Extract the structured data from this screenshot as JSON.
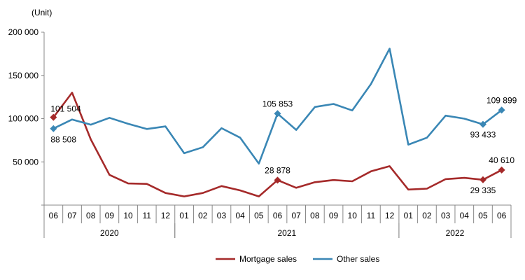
{
  "chart_data": {
    "type": "line",
    "unit_label": "(Unit)",
    "categories": [
      "06",
      "07",
      "08",
      "09",
      "10",
      "11",
      "12",
      "01",
      "02",
      "03",
      "04",
      "05",
      "06",
      "07",
      "08",
      "09",
      "10",
      "11",
      "12",
      "01",
      "02",
      "03",
      "04",
      "05",
      "06"
    ],
    "year_groups": [
      {
        "label": "2020",
        "start": 0,
        "end": 6
      },
      {
        "label": "2021",
        "start": 7,
        "end": 18
      },
      {
        "label": "2022",
        "start": 19,
        "end": 24
      }
    ],
    "y_ticks": [
      0,
      50000,
      100000,
      150000,
      200000
    ],
    "y_tick_labels": [
      "",
      "50 000",
      "100 000",
      "150 000",
      "200 000"
    ],
    "ylim": [
      0,
      200000
    ],
    "series": [
      {
        "name": "Mortgage sales",
        "color": "#a52a2a",
        "values": [
          101504,
          130000,
          76000,
          35000,
          25000,
          24500,
          14000,
          10000,
          14000,
          22000,
          17000,
          10000,
          28878,
          20000,
          26500,
          29000,
          27500,
          39000,
          45000,
          18000,
          19000,
          30000,
          31500,
          29335,
          40610
        ]
      },
      {
        "name": "Other sales",
        "color": "#3a87b5",
        "values": [
          88508,
          99000,
          93000,
          101000,
          94000,
          88000,
          91000,
          60000,
          67000,
          89000,
          78000,
          48000,
          105853,
          87000,
          113500,
          117000,
          109500,
          140000,
          181000,
          70000,
          78000,
          103500,
          100000,
          93433,
          109899
        ]
      }
    ],
    "data_labels": [
      {
        "series": 0,
        "index": 0,
        "text": "101 504",
        "pos": "above-right"
      },
      {
        "series": 1,
        "index": 0,
        "text": "88 508",
        "pos": "below-right"
      },
      {
        "series": 1,
        "index": 12,
        "text": "105 853",
        "pos": "above"
      },
      {
        "series": 0,
        "index": 12,
        "text": "28 878",
        "pos": "above"
      },
      {
        "series": 1,
        "index": 24,
        "text": "109 899",
        "pos": "above"
      },
      {
        "series": 1,
        "index": 23,
        "text": "93 433",
        "pos": "below"
      },
      {
        "series": 0,
        "index": 24,
        "text": "40 610",
        "pos": "above"
      },
      {
        "series": 0,
        "index": 23,
        "text": "29 335",
        "pos": "below"
      }
    ],
    "marker_indices": [
      0,
      12,
      23,
      24
    ],
    "legend": [
      "Mortgage sales",
      "Other sales"
    ],
    "legend_position": "bottom"
  }
}
